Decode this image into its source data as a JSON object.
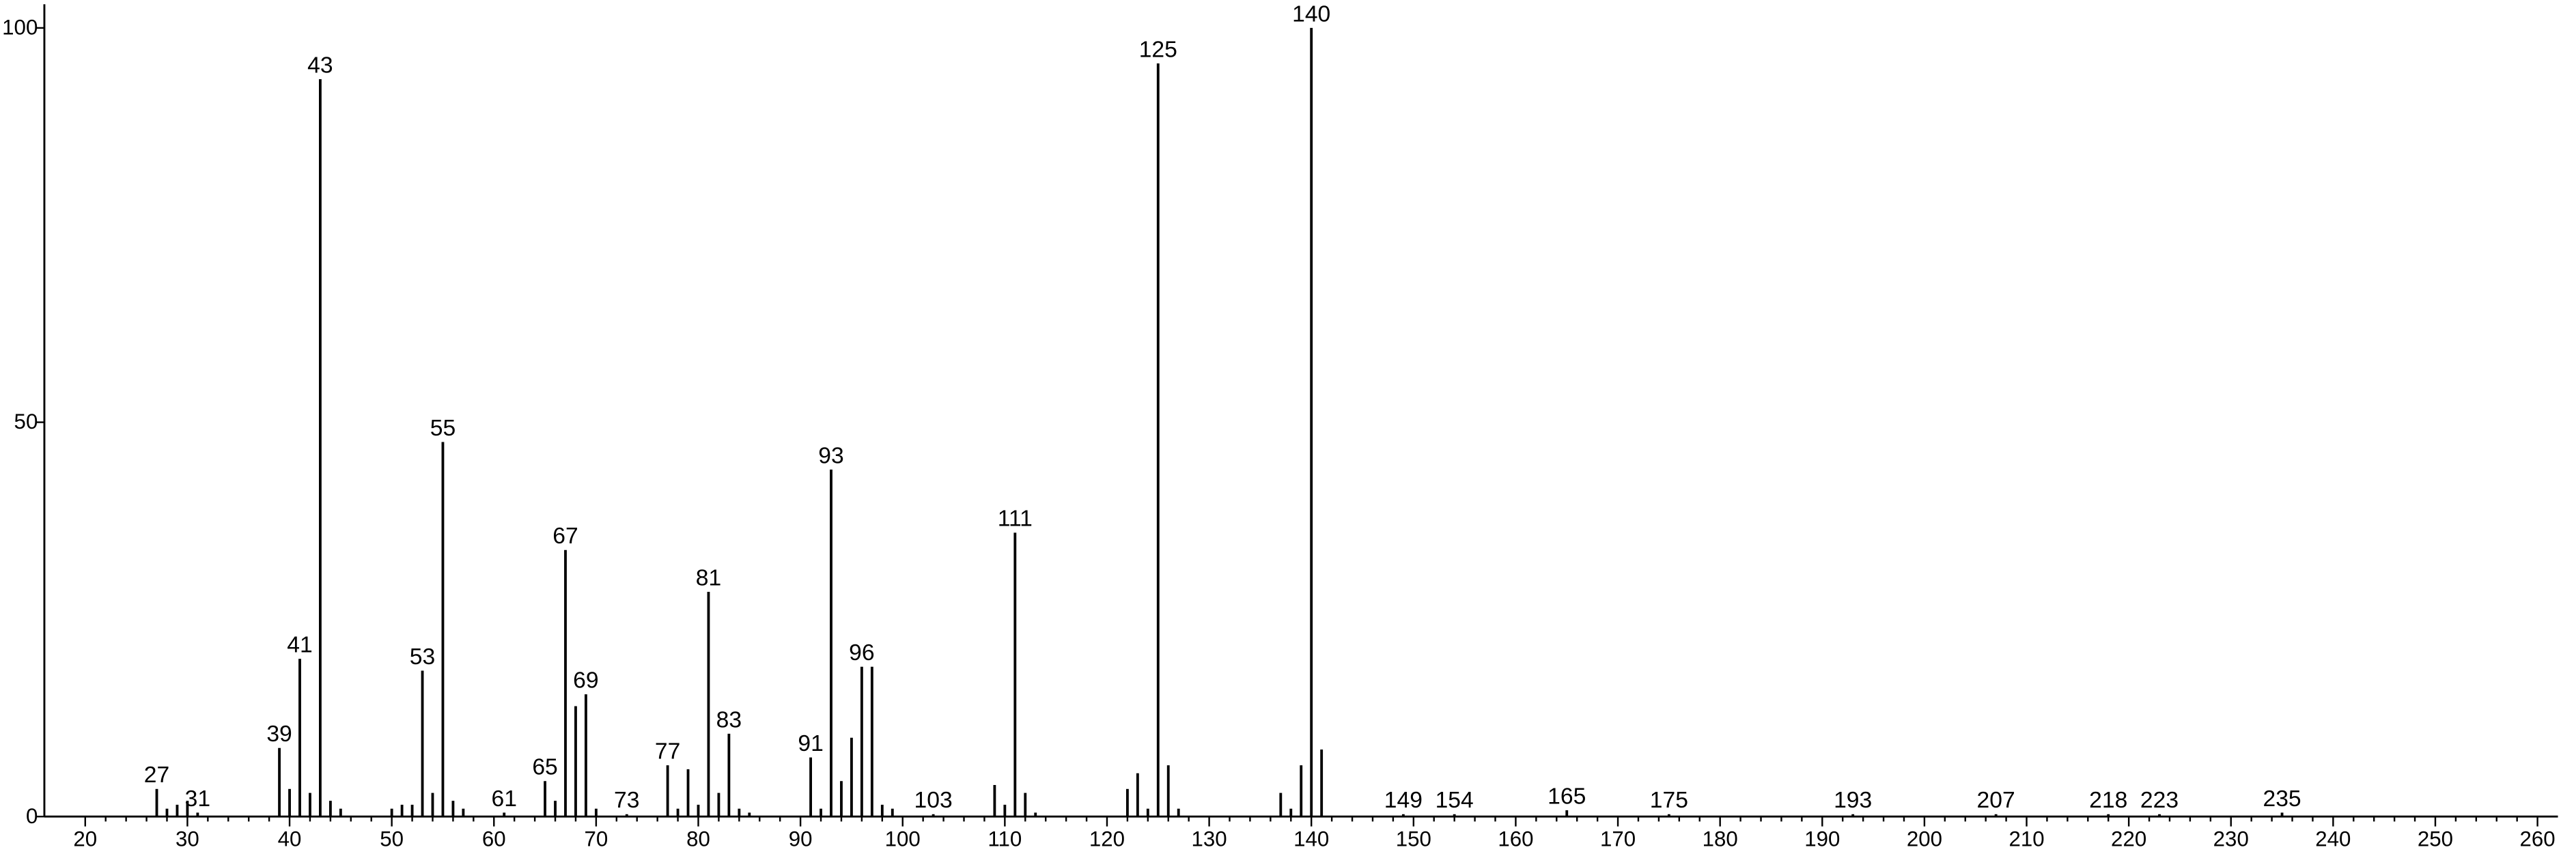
{
  "chart_data": {
    "type": "stick",
    "x": [
      27,
      28,
      29,
      30,
      31,
      39,
      40,
      41,
      42,
      43,
      44,
      45,
      50,
      51,
      52,
      53,
      54,
      55,
      56,
      57,
      61,
      65,
      66,
      67,
      68,
      69,
      70,
      73,
      77,
      78,
      79,
      80,
      81,
      82,
      83,
      84,
      85,
      91,
      92,
      93,
      94,
      95,
      96,
      97,
      98,
      99,
      103,
      109,
      110,
      111,
      112,
      113,
      122,
      123,
      124,
      125,
      126,
      127,
      137,
      138,
      139,
      140,
      141,
      149,
      154,
      165,
      175,
      193,
      207,
      218,
      223,
      235
    ],
    "values": [
      3.5,
      1,
      1.5,
      2,
      0.5,
      8.7,
      3.5,
      20,
      3,
      93.5,
      2,
      1,
      1,
      1.5,
      1.5,
      18.5,
      3,
      47.5,
      2,
      1,
      0.5,
      4.5,
      2,
      33.8,
      14,
      15.5,
      1,
      0.3,
      6.5,
      1,
      6,
      1.5,
      28.5,
      3,
      10.5,
      1,
      0.5,
      7.5,
      1,
      44,
      4.5,
      10,
      19,
      19,
      1.5,
      1,
      0.3,
      4,
      1.5,
      36,
      3,
      0.5,
      3.5,
      5.5,
      1,
      95.5,
      6.5,
      1,
      3,
      1,
      6.5,
      100,
      8.5,
      0.3,
      0.3,
      0.8,
      0.3,
      0.3,
      0.3,
      0.3,
      0.3,
      0.5
    ],
    "annotations": [
      27,
      31,
      39,
      41,
      43,
      53,
      55,
      61,
      65,
      67,
      69,
      73,
      77,
      81,
      83,
      91,
      93,
      96,
      103,
      111,
      125,
      140,
      149,
      154,
      165,
      175,
      193,
      207,
      218,
      223,
      235
    ],
    "color": "#000000",
    "xlim": [
      16,
      262
    ],
    "ylim": [
      0,
      103
    ],
    "xticks": [
      20,
      30,
      40,
      50,
      60,
      70,
      80,
      90,
      100,
      110,
      120,
      130,
      140,
      150,
      160,
      170,
      180,
      190,
      200,
      210,
      220,
      230,
      240,
      250,
      260
    ],
    "yticks": [
      0,
      50,
      100
    ]
  }
}
